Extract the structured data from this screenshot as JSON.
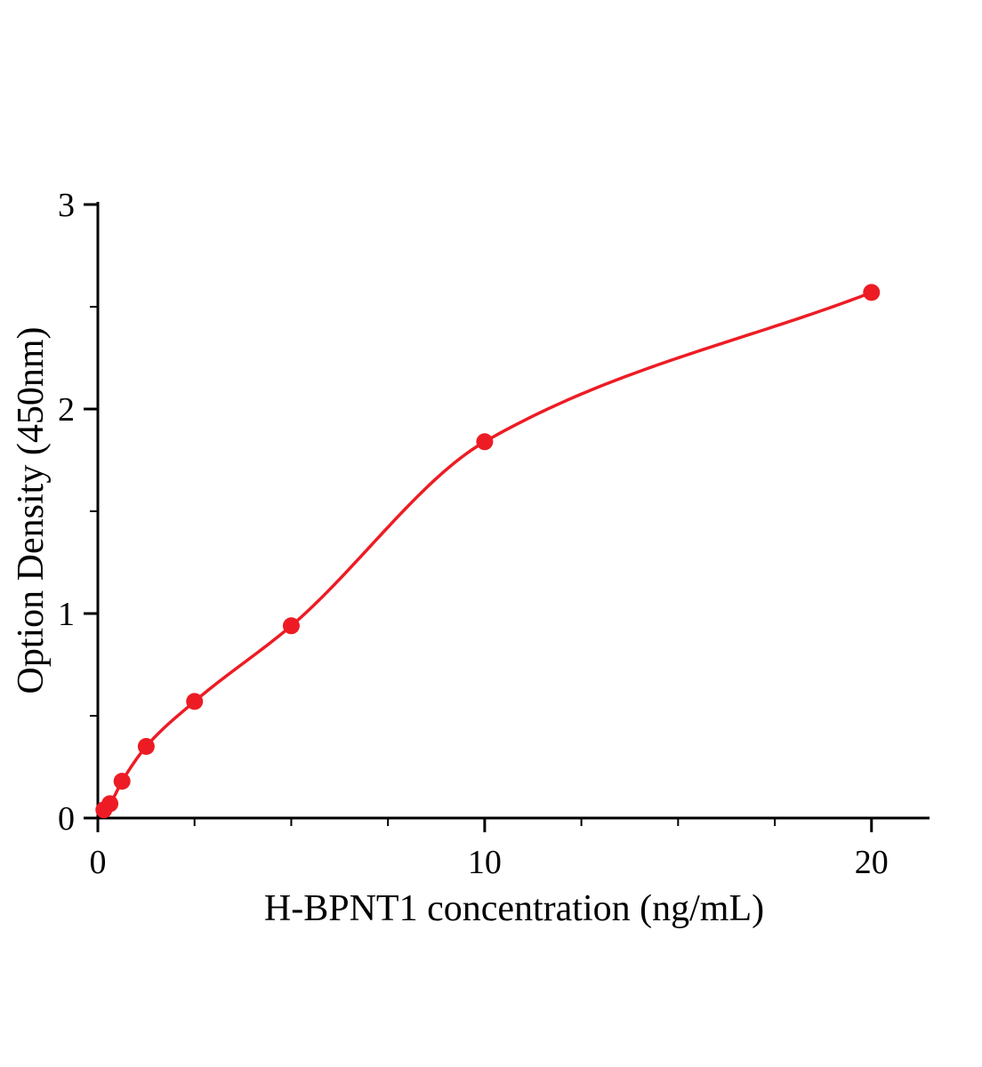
{
  "chart_data": {
    "type": "scatter",
    "title": "",
    "xlabel": "H-BPNT1 concentration (ng/mL)",
    "ylabel": "Option Density (450nm)",
    "x": [
      0.156,
      0.3125,
      0.625,
      1.25,
      2.5,
      5,
      10,
      20
    ],
    "y": [
      0.04,
      0.07,
      0.18,
      0.35,
      0.57,
      0.94,
      1.84,
      2.57
    ],
    "curve_style": "smooth-fit-through-points",
    "xlim": [
      0,
      21.5
    ],
    "ylim": [
      0,
      3
    ],
    "x_major_ticks": [
      0,
      10,
      20
    ],
    "x_minor_ticks": [
      2.5,
      5,
      7.5,
      12.5,
      15,
      17.5
    ],
    "y_major_ticks": [
      0,
      1,
      2,
      3
    ],
    "y_minor_ticks": [
      0.5,
      1.5,
      2.5
    ],
    "grid": false,
    "legend": null,
    "colors": {
      "point": "#ed1c24",
      "line": "#ed1c24",
      "axis": "#000000"
    }
  }
}
